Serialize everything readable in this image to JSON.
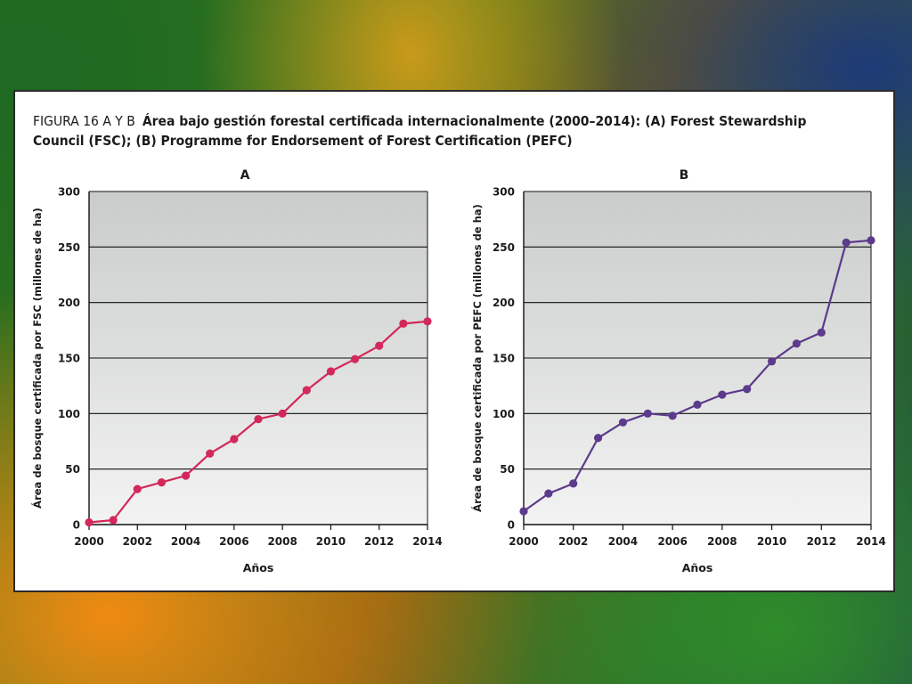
{
  "figure": {
    "label": "FIGURA 16 A Y B",
    "title": "Área bajo gestión forestal certificada internacionalmente (2000–2014): (A) Forest Stewardship Council (FSC); (B) Programme for Endorsement of Forest Certification (PEFC)"
  },
  "chart_data": [
    {
      "type": "line",
      "title": "A",
      "xlabel": "Años",
      "ylabel": "Área de bosque certificada por FSC (millones de ha)",
      "x": [
        2000,
        2001,
        2002,
        2003,
        2004,
        2005,
        2006,
        2007,
        2008,
        2009,
        2010,
        2011,
        2012,
        2013,
        2014
      ],
      "series": [
        {
          "values": [
            2,
            4,
            32,
            38,
            44,
            64,
            77,
            95,
            100,
            121,
            138,
            149,
            161,
            181,
            183
          ]
        }
      ],
      "xlim": [
        2000,
        2014
      ],
      "ylim": [
        0,
        300
      ],
      "xticks": [
        2000,
        2002,
        2004,
        2006,
        2008,
        2010,
        2012,
        2014
      ],
      "yticks": [
        0,
        50,
        100,
        150,
        200,
        250,
        300
      ],
      "color": "#d3285a",
      "grid": true
    },
    {
      "type": "line",
      "title": "B",
      "xlabel": "Años",
      "ylabel": "Área de bosque certificada por PEFC (millones de ha)",
      "x": [
        2000,
        2001,
        2002,
        2003,
        2004,
        2005,
        2006,
        2007,
        2008,
        2009,
        2010,
        2011,
        2012,
        2013,
        2014
      ],
      "series": [
        {
          "values": [
            12,
            28,
            37,
            78,
            92,
            100,
            98,
            108,
            117,
            122,
            147,
            163,
            173,
            254,
            256
          ]
        }
      ],
      "xlim": [
        2000,
        2014
      ],
      "ylim": [
        0,
        300
      ],
      "xticks": [
        2000,
        2002,
        2004,
        2006,
        2008,
        2010,
        2012,
        2014
      ],
      "yticks": [
        0,
        50,
        100,
        150,
        200,
        250,
        300
      ],
      "color": "#5c3a8c",
      "grid": true
    }
  ]
}
